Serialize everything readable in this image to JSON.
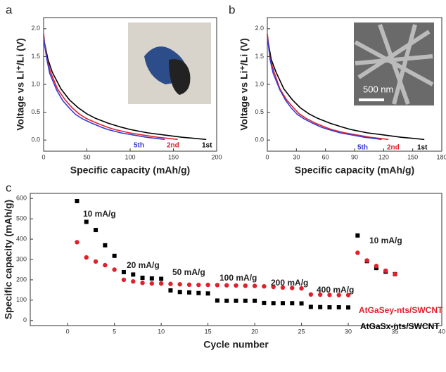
{
  "chart_data": [
    {
      "type": "line",
      "panel_label": "a",
      "xlabel": "Specific capacity (mAh/g)",
      "ylabel": "Voltage vs Li⁺/Li (V)",
      "xlim": [
        0,
        200
      ],
      "xticks": [
        0,
        50,
        100,
        150,
        200
      ],
      "ylim": [
        -0.2,
        2.2
      ],
      "yticks": [
        {
          "value": 0,
          "label": "0.0"
        },
        {
          "value": 0.5,
          "label": "0.5"
        },
        {
          "value": 1,
          "label": "1.0"
        },
        {
          "value": 1.5,
          "label": "1.5"
        },
        {
          "value": 2,
          "label": "2.0"
        }
      ],
      "series": [
        {
          "name": "1st",
          "color": "#000000",
          "x": [
            0,
            1,
            5,
            10,
            20,
            30,
            40,
            50,
            60,
            75,
            90,
            100,
            120,
            140,
            160,
            175,
            188
          ],
          "values": [
            1.9,
            1.75,
            1.45,
            1.22,
            0.92,
            0.72,
            0.58,
            0.47,
            0.39,
            0.3,
            0.23,
            0.19,
            0.13,
            0.09,
            0.05,
            0.03,
            0.01
          ]
        },
        {
          "name": "2nd",
          "color": "#e0202a",
          "x": [
            0,
            1,
            4,
            8,
            16,
            25,
            33,
            41,
            49,
            62,
            74,
            82,
            99,
            115,
            132,
            144,
            155
          ],
          "values": [
            1.9,
            1.75,
            1.45,
            1.22,
            0.92,
            0.72,
            0.58,
            0.47,
            0.39,
            0.3,
            0.23,
            0.19,
            0.13,
            0.09,
            0.05,
            0.03,
            0.01
          ]
        },
        {
          "name": "5th",
          "color": "#3a3ad0",
          "x": [
            0,
            1,
            4,
            7,
            15,
            22,
            30,
            37,
            45,
            56,
            67,
            74,
            89,
            104,
            119,
            130,
            140
          ],
          "values": [
            1.85,
            1.72,
            1.43,
            1.2,
            0.9,
            0.71,
            0.57,
            0.46,
            0.38,
            0.3,
            0.23,
            0.19,
            0.13,
            0.09,
            0.05,
            0.03,
            0.01
          ]
        }
      ]
    },
    {
      "type": "line",
      "panel_label": "b",
      "xlabel": "Specific capacity (mAh/g)",
      "ylabel": "Voltage vs Li⁺/Li (V)",
      "inset_scale": "500 nm",
      "xlim": [
        0,
        180
      ],
      "xticks": [
        0,
        30,
        60,
        90,
        120,
        150,
        180
      ],
      "ylim": [
        -0.2,
        2.2
      ],
      "yticks": [
        {
          "value": 0,
          "label": "0.0"
        },
        {
          "value": 0.5,
          "label": "0.5"
        },
        {
          "value": 1,
          "label": "1.0"
        },
        {
          "value": 1.5,
          "label": "1.5"
        },
        {
          "value": 2,
          "label": "2.0"
        }
      ],
      "series": [
        {
          "name": "1st",
          "color": "#000000",
          "x": [
            0,
            1,
            4,
            9,
            17,
            26,
            34,
            43,
            52,
            65,
            78,
            86,
            103,
            121,
            138,
            151,
            162
          ],
          "values": [
            1.9,
            1.75,
            1.45,
            1.22,
            0.92,
            0.72,
            0.58,
            0.47,
            0.39,
            0.3,
            0.23,
            0.19,
            0.13,
            0.09,
            0.05,
            0.03,
            0.01
          ]
        },
        {
          "name": "2nd",
          "color": "#e0202a",
          "x": [
            0,
            1,
            3,
            7,
            13,
            20,
            27,
            33,
            40,
            50,
            60,
            66,
            80,
            93,
            106,
            116,
            125
          ],
          "values": [
            1.9,
            1.75,
            1.45,
            1.22,
            0.92,
            0.72,
            0.58,
            0.47,
            0.39,
            0.3,
            0.23,
            0.19,
            0.13,
            0.09,
            0.05,
            0.03,
            0.01
          ]
        },
        {
          "name": "5th",
          "color": "#3a3ad0",
          "x": [
            0,
            1,
            3,
            6,
            13,
            19,
            25,
            31,
            38,
            47,
            56,
            63,
            75,
            88,
            100,
            110,
            118
          ],
          "values": [
            1.85,
            1.72,
            1.43,
            1.2,
            0.9,
            0.71,
            0.57,
            0.46,
            0.38,
            0.3,
            0.23,
            0.19,
            0.13,
            0.09,
            0.05,
            0.03,
            0.01
          ]
        }
      ]
    },
    {
      "type": "scatter",
      "panel_label": "c",
      "xlabel": "Cycle number",
      "ylabel": "Specific capacity (mAh/g)",
      "xlim": [
        -4,
        40
      ],
      "xticks": [
        0,
        5,
        10,
        15,
        20,
        25,
        30,
        35,
        40
      ],
      "ylim": [
        -25,
        625
      ],
      "yticks": [
        0,
        100,
        200,
        300,
        400,
        500,
        600
      ],
      "annotations": [
        "10 mA/g",
        "20 mA/g",
        "50 mA/g",
        "100 mA/g",
        "200 mA/g",
        "400 mA/g",
        "10 mA/g"
      ],
      "x": [
        1,
        2,
        3,
        4,
        5,
        6,
        7,
        8,
        9,
        10,
        11,
        12,
        13,
        14,
        15,
        16,
        17,
        18,
        19,
        20,
        21,
        22,
        23,
        24,
        25,
        26,
        27,
        28,
        29,
        30,
        31,
        32,
        33,
        34,
        35
      ],
      "series": [
        {
          "name": "AtGaSx-nts/SWCNT",
          "color": "#000000",
          "marker": "square",
          "values": [
            587,
            485,
            445,
            370,
            318,
            238,
            226,
            210,
            207,
            205,
            148,
            140,
            138,
            135,
            133,
            98,
            97,
            97,
            97,
            97,
            86,
            85,
            85,
            85,
            84,
            67,
            66,
            65,
            65,
            64,
            418,
            292,
            258,
            240,
            228
          ]
        },
        {
          "name": "AtGaSey-nts/SWCNT",
          "color": "#e0202a",
          "marker": "circle",
          "values": [
            385,
            310,
            290,
            272,
            250,
            200,
            192,
            185,
            182,
            182,
            180,
            178,
            176,
            175,
            175,
            174,
            173,
            172,
            171,
            170,
            168,
            165,
            162,
            160,
            158,
            128,
            127,
            126,
            125,
            125,
            333,
            295,
            268,
            245,
            228
          ]
        }
      ]
    }
  ]
}
